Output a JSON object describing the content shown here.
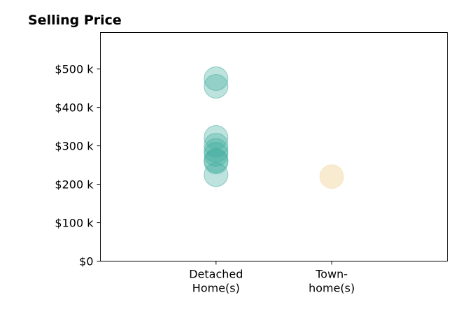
{
  "chart_data": {
    "type": "scatter",
    "title": "Selling Price",
    "xlabel": "",
    "ylabel": "",
    "categories": [
      [
        "Detached",
        "Home(s)"
      ],
      [
        "Town-",
        "home(s)"
      ]
    ],
    "ylim": [
      0,
      595000
    ],
    "xlim": [
      -1,
      2
    ],
    "yticks": [
      {
        "value": 0,
        "label": "$0"
      },
      {
        "value": 100000,
        "label": "$100 k"
      },
      {
        "value": 200000,
        "label": "$200 k"
      },
      {
        "value": 300000,
        "label": "$300 k"
      },
      {
        "value": 400000,
        "label": "$400 k"
      },
      {
        "value": 500000,
        "label": "$500 k"
      }
    ],
    "grid": false,
    "series": [
      {
        "category_index": 0,
        "color": "#3aa99a",
        "values": [
          475000,
          455000,
          322000,
          302000,
          288000,
          278000,
          262000,
          258000,
          225000
        ]
      },
      {
        "category_index": 1,
        "color": "#f3deb0",
        "values": [
          220000
        ]
      }
    ]
  }
}
